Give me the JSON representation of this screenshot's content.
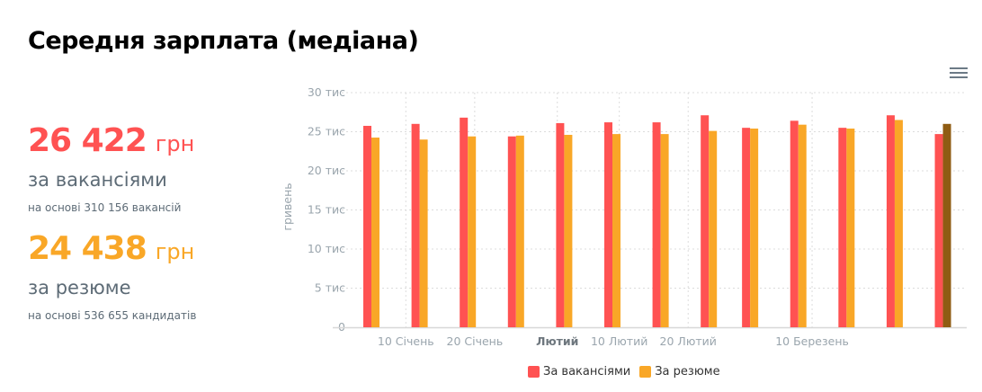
{
  "title": "Середня зарплата (медіана)",
  "summary": {
    "vacancies": {
      "value": "26 422",
      "unit": "грн",
      "label": "за вакансіями",
      "note": "на основі 310 156 вакансій",
      "color": "#ff5252"
    },
    "resumes": {
      "value": "24 438",
      "unit": "грн",
      "label": "за резюме",
      "note": "на основі 536 655 кандидатів",
      "color": "#f9a727"
    }
  },
  "chart_data": {
    "type": "bar",
    "ylabel": "гривень",
    "ylim": [
      0,
      30000
    ],
    "yticks": [
      {
        "v": 0,
        "label": "0"
      },
      {
        "v": 5000,
        "label": "5 тис"
      },
      {
        "v": 10000,
        "label": "10 тис"
      },
      {
        "v": 15000,
        "label": "15 тис"
      },
      {
        "v": 20000,
        "label": "20 тис"
      },
      {
        "v": 25000,
        "label": "25 тис"
      },
      {
        "v": 30000,
        "label": "30 тис"
      }
    ],
    "xticks": [
      {
        "date": "01-10",
        "label": "10 Січень",
        "bold": false
      },
      {
        "date": "01-20",
        "label": "20 Січень",
        "bold": false
      },
      {
        "date": "02-01",
        "label": "Лютий",
        "bold": true
      },
      {
        "date": "02-10",
        "label": "10 Лютий",
        "bold": false
      },
      {
        "date": "02-20",
        "label": "20 Лютий",
        "bold": false
      },
      {
        "date": "03-10",
        "label": "10 Березень",
        "bold": false
      }
    ],
    "x": [
      "01-05",
      "01-12",
      "01-19",
      "01-26",
      "02-02",
      "02-09",
      "02-16",
      "02-23",
      "03-01",
      "03-08",
      "03-15",
      "03-22",
      "03-29"
    ],
    "series": [
      {
        "name": "За вакансіями",
        "color": "#ff5252",
        "values": [
          25750,
          26000,
          26800,
          24400,
          26100,
          26200,
          26200,
          27100,
          25500,
          26400,
          25500,
          27100,
          24700
        ]
      },
      {
        "name": "За резюме",
        "color": "#f9a727",
        "values": [
          24250,
          24000,
          24400,
          24500,
          24600,
          24700,
          24700,
          25100,
          25400,
          25900,
          25400,
          26500,
          26000
        ]
      }
    ],
    "highlight": {
      "series": 1,
      "index": 12,
      "color": "#8f5c13"
    },
    "grid": true,
    "legend": "bottom-center"
  },
  "menu_icon": "hamburger-menu-icon"
}
